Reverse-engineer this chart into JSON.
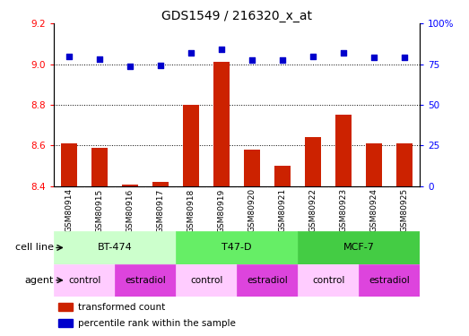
{
  "title": "GDS1549 / 216320_x_at",
  "samples": [
    "GSM80914",
    "GSM80915",
    "GSM80916",
    "GSM80917",
    "GSM80918",
    "GSM80919",
    "GSM80920",
    "GSM80921",
    "GSM80922",
    "GSM80923",
    "GSM80924",
    "GSM80925"
  ],
  "bar_values": [
    8.61,
    8.59,
    8.41,
    8.42,
    8.8,
    9.01,
    8.58,
    8.5,
    8.64,
    8.75,
    8.61,
    8.61
  ],
  "scatter_values": [
    80.0,
    78.0,
    73.5,
    74.5,
    82.0,
    84.0,
    77.5,
    77.5,
    80.0,
    82.0,
    79.0,
    79.0
  ],
  "bar_bottom": 8.4,
  "ylim_left": [
    8.4,
    9.2
  ],
  "ylim_right": [
    0,
    100
  ],
  "yticks_left": [
    8.4,
    8.6,
    8.8,
    9.0,
    9.2
  ],
  "yticks_right": [
    0,
    25,
    50,
    75,
    100
  ],
  "ytick_labels_right": [
    "0",
    "25",
    "50",
    "75",
    "100%"
  ],
  "grid_values": [
    8.6,
    8.8,
    9.0
  ],
  "bar_color": "#cc2200",
  "scatter_color": "#0000cc",
  "cell_lines": [
    {
      "label": "BT-474",
      "start": 0,
      "end": 3,
      "color": "#ccffcc"
    },
    {
      "label": "T47-D",
      "start": 4,
      "end": 7,
      "color": "#66ee66"
    },
    {
      "label": "MCF-7",
      "start": 8,
      "end": 11,
      "color": "#44cc44"
    }
  ],
  "agent_map": [
    [
      0,
      2,
      "control"
    ],
    [
      2,
      4,
      "estradiol"
    ],
    [
      4,
      6,
      "control"
    ],
    [
      6,
      8,
      "estradiol"
    ],
    [
      8,
      10,
      "control"
    ],
    [
      10,
      12,
      "estradiol"
    ]
  ],
  "agent_colors": {
    "control": "#ffccff",
    "estradiol": "#dd44dd"
  },
  "legend_bar_label": "transformed count",
  "legend_scatter_label": "percentile rank within the sample",
  "cell_line_label": "cell line",
  "agent_label": "agent",
  "bar_width": 0.55,
  "xlabel_fontsize": 6.5,
  "tick_fontsize": 7.5,
  "title_fontsize": 10,
  "xtick_bg_color": "#d0d0d0"
}
